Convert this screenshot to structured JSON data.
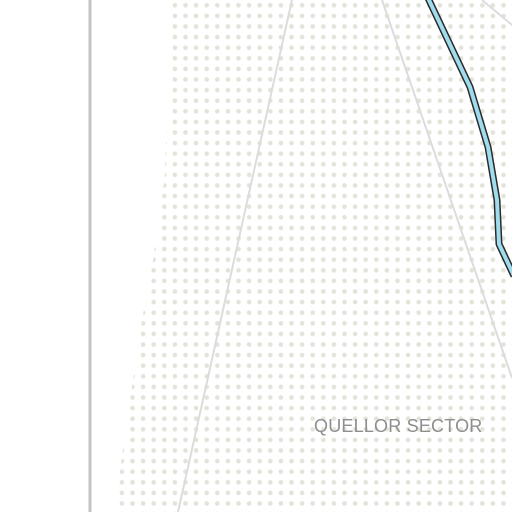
{
  "map": {
    "labels": {
      "sector": "QUELLOR SECTOR"
    },
    "colors": {
      "background": "#ffffff",
      "border_line": "#c3c3c3",
      "sector_fill_dots": "#e3e3d9",
      "sector_lane": "#dcdcdc",
      "route_fill": "#9fdced",
      "route_outline": "#2a2a2a",
      "label": "#8e8e8e"
    }
  }
}
